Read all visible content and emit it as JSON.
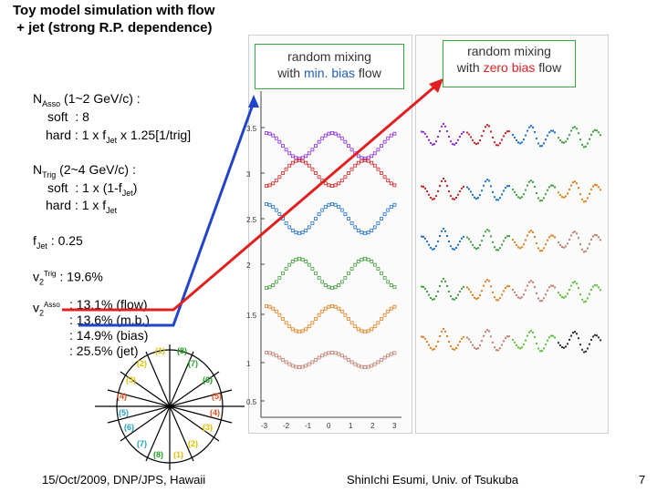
{
  "title": "Toy model simulation with flow\n + jet (strong R.P. dependence)",
  "asso": {
    "head": "N",
    "head_sub": "Asso",
    "head_rest": " (1~2 GeV/c) :",
    "soft": "soft  : 8",
    "hard_pre": "hard : 1 x f",
    "hard_sub": "Jet",
    "hard_post": " x 1.25[1/trig]"
  },
  "trig": {
    "head": "N",
    "head_sub": "Trig",
    "head_rest": " (2~4 GeV/c) :",
    "soft_pre": "soft  : 1 x (1-f",
    "soft_sub": "Jet",
    "soft_post": ")",
    "hard_pre": "hard : 1 x f",
    "hard_sub": "Jet"
  },
  "fjet": {
    "pre": "f",
    "sub": "Jet",
    "post": " : 0.25"
  },
  "v2trig": {
    "v": "v",
    "sub": "2",
    "sup": "Trig",
    "post": " : 19.6%"
  },
  "v2asso": {
    "v": "v",
    "sub": "2",
    "sup": "Asso",
    "lines": [
      ": 13.1% (flow)",
      ": 13.6% (m.b.)",
      ": 14.9% (bias)",
      ": 25.5% (jet)"
    ]
  },
  "box_left": {
    "line1": "random mixing",
    "line2_pre": "with ",
    "line2_colored": "min. bias",
    "line2_post": " flow"
  },
  "box_right": {
    "line1": "random mixing",
    "line2_pre": "with ",
    "line2_colored": "zero bias",
    "line2_post": " flow"
  },
  "footer": {
    "date": "15/Oct/2009, DNP/JPS, Hawaii",
    "author": "ShinIchi Esumi, Univ. of Tsukuba",
    "page": "7"
  },
  "plot_axis": {
    "y_ticks": [
      "3.5",
      "3",
      "2.5",
      "2",
      "1.5",
      "1",
      "0.5"
    ],
    "x_ticks": [
      "-3",
      "-2",
      "-1",
      "0",
      "1",
      "2",
      "3"
    ]
  },
  "rp_labels": [
    "(1)",
    "(8)",
    "(2)",
    "(7)",
    "(3)",
    "(6)",
    "(4)",
    "(5)",
    "(5)",
    "(4)",
    "(6)",
    "(3)",
    "(7)",
    "(2)",
    "(8)",
    "(1)"
  ],
  "colors": {
    "box_border": "#3aa63a",
    "blue": "#1f5fbf",
    "red": "#e02020",
    "series": [
      "#8a2be2",
      "#d02020",
      "#2070d0",
      "#40a040",
      "#e08020",
      "#c08070",
      "#60c040",
      "#303030"
    ]
  }
}
